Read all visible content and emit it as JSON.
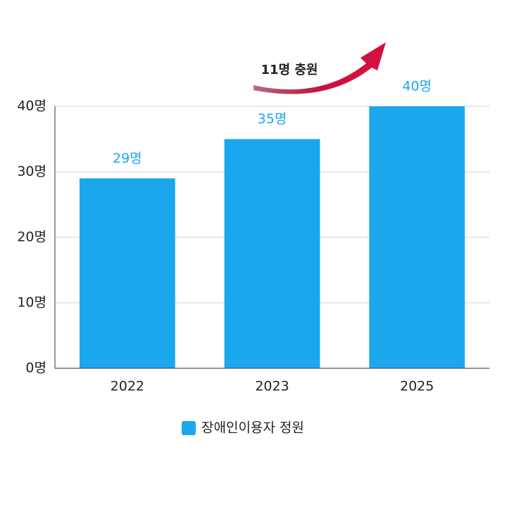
{
  "chart_data": {
    "type": "bar",
    "categories": [
      "2022",
      "2023",
      "2025"
    ],
    "series": [
      {
        "name": "장애인이용자 정원",
        "color": "#1aa7ee",
        "values": [
          29,
          35,
          40
        ],
        "value_labels": [
          "29명",
          "35명",
          "40명"
        ]
      }
    ],
    "ylim": [
      0,
      40
    ],
    "yticks": [
      {
        "value": 0,
        "label": "0명"
      },
      {
        "value": 10,
        "label": "10명"
      },
      {
        "value": 20,
        "label": "20명"
      },
      {
        "value": 30,
        "label": "30명"
      },
      {
        "value": 40,
        "label": "40명"
      }
    ],
    "grid": true,
    "annotation": "11명 충원"
  }
}
